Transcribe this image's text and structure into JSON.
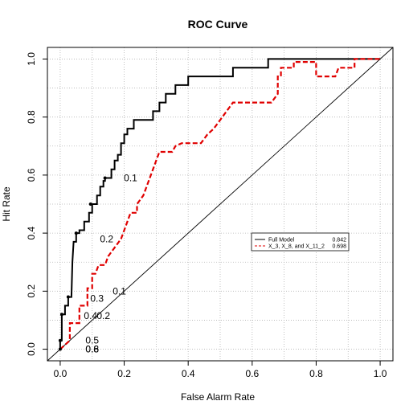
{
  "chart_data": {
    "type": "line",
    "title": "ROC Curve",
    "xlabel": "False Alarm Rate",
    "ylabel": "Hit Rate",
    "xlim": [
      -0.04,
      1.04
    ],
    "ylim": [
      -0.04,
      1.04
    ],
    "x_ticks": [
      "0.0",
      "0.2",
      "0.4",
      "0.6",
      "0.8",
      "1.0"
    ],
    "y_ticks": [
      "0.0",
      "0.2",
      "0.4",
      "0.6",
      "0.8",
      "1.0"
    ],
    "grid": true,
    "legend_position": "right",
    "colors": {
      "full_model": "#000000",
      "reduced_model": "#e00000",
      "reference": "#000000",
      "grid": "#b3b3b3"
    },
    "series": [
      {
        "name": "Full Model",
        "auc": "0.842",
        "style": "solid",
        "points": [
          [
            0,
            0
          ],
          [
            0,
            0.03
          ],
          [
            0.005,
            0.03
          ],
          [
            0.005,
            0.12
          ],
          [
            0.015,
            0.12
          ],
          [
            0.015,
            0.15
          ],
          [
            0.025,
            0.15
          ],
          [
            0.025,
            0.18
          ],
          [
            0.035,
            0.18
          ],
          [
            0.038,
            0.3
          ],
          [
            0.042,
            0.37
          ],
          [
            0.05,
            0.37
          ],
          [
            0.05,
            0.4
          ],
          [
            0.06,
            0.4
          ],
          [
            0.06,
            0.41
          ],
          [
            0.075,
            0.41
          ],
          [
            0.075,
            0.44
          ],
          [
            0.09,
            0.44
          ],
          [
            0.09,
            0.47
          ],
          [
            0.1,
            0.47
          ],
          [
            0.1,
            0.5
          ],
          [
            0.115,
            0.5
          ],
          [
            0.115,
            0.53
          ],
          [
            0.125,
            0.53
          ],
          [
            0.125,
            0.56
          ],
          [
            0.135,
            0.56
          ],
          [
            0.135,
            0.58
          ],
          [
            0.14,
            0.58
          ],
          [
            0.14,
            0.59
          ],
          [
            0.16,
            0.59
          ],
          [
            0.16,
            0.62
          ],
          [
            0.17,
            0.62
          ],
          [
            0.17,
            0.65
          ],
          [
            0.18,
            0.65
          ],
          [
            0.18,
            0.67
          ],
          [
            0.19,
            0.67
          ],
          [
            0.19,
            0.71
          ],
          [
            0.2,
            0.71
          ],
          [
            0.2,
            0.74
          ],
          [
            0.21,
            0.74
          ],
          [
            0.21,
            0.76
          ],
          [
            0.23,
            0.76
          ],
          [
            0.23,
            0.79
          ],
          [
            0.29,
            0.79
          ],
          [
            0.29,
            0.82
          ],
          [
            0.31,
            0.82
          ],
          [
            0.31,
            0.85
          ],
          [
            0.33,
            0.85
          ],
          [
            0.33,
            0.88
          ],
          [
            0.36,
            0.88
          ],
          [
            0.36,
            0.91
          ],
          [
            0.4,
            0.91
          ],
          [
            0.4,
            0.94
          ],
          [
            0.54,
            0.94
          ],
          [
            0.54,
            0.97
          ],
          [
            0.65,
            0.97
          ],
          [
            0.65,
            1.0
          ],
          [
            1.0,
            1.0
          ]
        ]
      },
      {
        "name": "X_3, X_8, and X_11_2",
        "auc": "0.698",
        "style": "dashed",
        "points": [
          [
            0,
            0
          ],
          [
            0.03,
            0.03
          ],
          [
            0.03,
            0.09
          ],
          [
            0.06,
            0.09
          ],
          [
            0.06,
            0.15
          ],
          [
            0.085,
            0.15
          ],
          [
            0.085,
            0.21
          ],
          [
            0.1,
            0.21
          ],
          [
            0.1,
            0.26
          ],
          [
            0.11,
            0.26
          ],
          [
            0.12,
            0.29
          ],
          [
            0.14,
            0.29
          ],
          [
            0.15,
            0.32
          ],
          [
            0.17,
            0.35
          ],
          [
            0.19,
            0.38
          ],
          [
            0.2,
            0.41
          ],
          [
            0.22,
            0.47
          ],
          [
            0.24,
            0.47
          ],
          [
            0.24,
            0.5
          ],
          [
            0.26,
            0.53
          ],
          [
            0.28,
            0.59
          ],
          [
            0.3,
            0.65
          ],
          [
            0.31,
            0.68
          ],
          [
            0.35,
            0.68
          ],
          [
            0.36,
            0.7
          ],
          [
            0.38,
            0.71
          ],
          [
            0.44,
            0.71
          ],
          [
            0.46,
            0.74
          ],
          [
            0.48,
            0.76
          ],
          [
            0.5,
            0.79
          ],
          [
            0.52,
            0.82
          ],
          [
            0.54,
            0.85
          ],
          [
            0.66,
            0.85
          ],
          [
            0.68,
            0.88
          ],
          [
            0.68,
            0.91
          ],
          [
            0.68,
            0.94
          ],
          [
            0.69,
            0.94
          ],
          [
            0.69,
            0.97
          ],
          [
            0.73,
            0.97
          ],
          [
            0.73,
            0.99
          ],
          [
            0.78,
            0.99
          ],
          [
            0.8,
            0.99
          ],
          [
            0.8,
            0.94
          ],
          [
            0.86,
            0.94
          ],
          [
            0.87,
            0.97
          ],
          [
            0.91,
            0.97
          ],
          [
            0.92,
            0.97
          ],
          [
            0.92,
            1.0
          ],
          [
            1.0,
            1.0
          ]
        ]
      }
    ],
    "threshold_points": [
      [
        0,
        0
      ],
      [
        0,
        0.03
      ],
      [
        0.005,
        0.12
      ],
      [
        0.025,
        0.18
      ],
      [
        0.05,
        0.4
      ],
      [
        0.095,
        0.5
      ],
      [
        0.14,
        0.59
      ]
    ],
    "threshold_labels": [
      {
        "text": "0.1",
        "x": 0.22,
        "y": 0.59
      },
      {
        "text": "0.2",
        "x": 0.145,
        "y": 0.38
      },
      {
        "text": "0.1",
        "x": 0.185,
        "y": 0.2
      },
      {
        "text": "0.3",
        "x": 0.115,
        "y": 0.175
      },
      {
        "text": "0.4",
        "x": 0.095,
        "y": 0.115
      },
      {
        "text": "0.2",
        "x": 0.135,
        "y": 0.115
      },
      {
        "text": "0.5",
        "x": 0.1,
        "y": 0.03
      },
      {
        "text": "0.6",
        "x": 0.1,
        "y": 0.0
      },
      {
        "text": "0.8",
        "x": 0.1,
        "y": 0.0
      }
    ]
  }
}
